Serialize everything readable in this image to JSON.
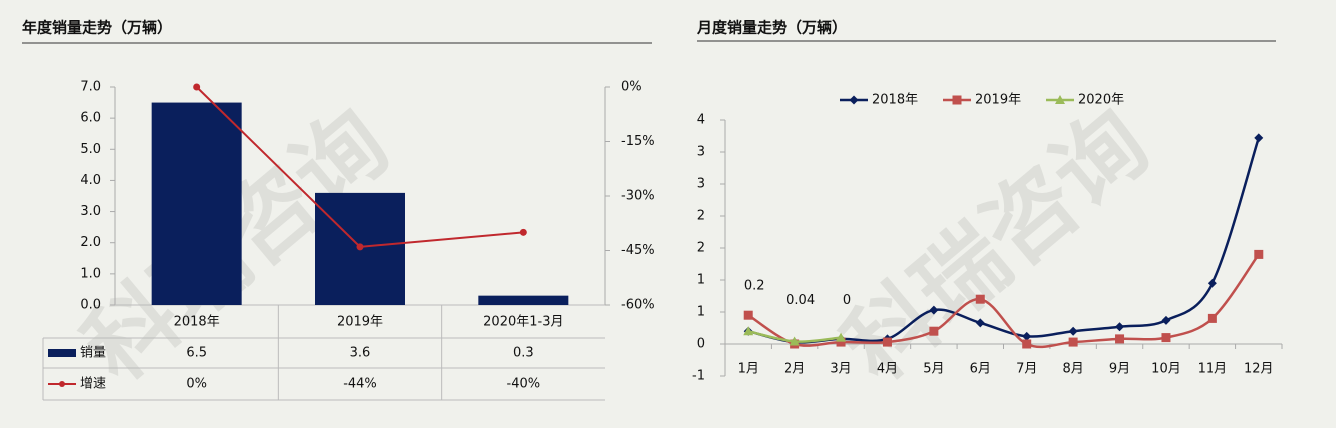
{
  "watermark": "科瑞咨询",
  "chart_data": [
    {
      "type": "bar",
      "title": "年度销量走势（万辆）",
      "categories": [
        "2018年",
        "2019年",
        "2020年1-3月"
      ],
      "series": [
        {
          "name": "销量",
          "color": "#0a1f5c",
          "values": [
            6.5,
            3.6,
            0.3
          ]
        },
        {
          "name": "增速",
          "color": "#c0282d",
          "axis": "y2",
          "values": [
            0,
            -44,
            -40
          ],
          "value_labels": [
            "0%",
            "-44%",
            "-40%"
          ]
        }
      ],
      "ylim": [
        0,
        7
      ],
      "yticks": [
        {
          "value": 0,
          "label": "0.0"
        },
        {
          "value": 1,
          "label": "1.0"
        },
        {
          "value": 2,
          "label": "2.0"
        },
        {
          "value": 3,
          "label": "3.0"
        },
        {
          "value": 4,
          "label": "4.0"
        },
        {
          "value": 5,
          "label": "5.0"
        },
        {
          "value": 6,
          "label": "6.0"
        },
        {
          "value": 7,
          "label": "7.0"
        }
      ],
      "y2lim": [
        -60,
        0
      ],
      "y2ticks": [
        {
          "value": -60,
          "label": "-60%"
        },
        {
          "value": -45,
          "label": "-45%"
        },
        {
          "value": -30,
          "label": "-30%"
        },
        {
          "value": -15,
          "label": "-15%"
        },
        {
          "value": 0,
          "label": "0%"
        }
      ]
    },
    {
      "type": "line",
      "title": "月度销量走势（万辆）",
      "categories": [
        "1月",
        "2月",
        "3月",
        "4月",
        "5月",
        "6月",
        "7月",
        "8月",
        "9月",
        "10月",
        "11月",
        "12月"
      ],
      "series": [
        {
          "name": "2018年",
          "color": "#0a1f5c",
          "marker": "diamond",
          "values": [
            0.2,
            0.03,
            0.08,
            0.08,
            0.53,
            0.33,
            0.12,
            0.2,
            0.27,
            0.37,
            0.95,
            3.22
          ]
        },
        {
          "name": "2019年",
          "color": "#c0504d",
          "marker": "square",
          "values": [
            0.45,
            0,
            0.03,
            0.03,
            0.2,
            0.7,
            0,
            0.03,
            0.08,
            0.1,
            0.4,
            1.4
          ]
        },
        {
          "name": "2020年",
          "color": "#9bbb59",
          "marker": "triangle",
          "values": [
            0.2,
            0.04,
            0.1,
            null,
            null,
            null,
            null,
            null,
            null,
            null,
            null,
            null
          ],
          "value_labels": [
            "0.2",
            "0.04",
            "0",
            null,
            null,
            null,
            null,
            null,
            null,
            null,
            null,
            null
          ]
        }
      ],
      "ylim": [
        -0.5,
        3.5
      ],
      "yticks": [
        {
          "value": -0.5,
          "label": "-1"
        },
        {
          "value": 0,
          "label": "0"
        },
        {
          "value": 0.5,
          "label": "1"
        },
        {
          "value": 1,
          "label": "1"
        },
        {
          "value": 1.5,
          "label": "2"
        },
        {
          "value": 2,
          "label": "2"
        },
        {
          "value": 2.5,
          "label": "3"
        },
        {
          "value": 3,
          "label": "3"
        },
        {
          "value": 3.5,
          "label": "4"
        }
      ]
    }
  ]
}
